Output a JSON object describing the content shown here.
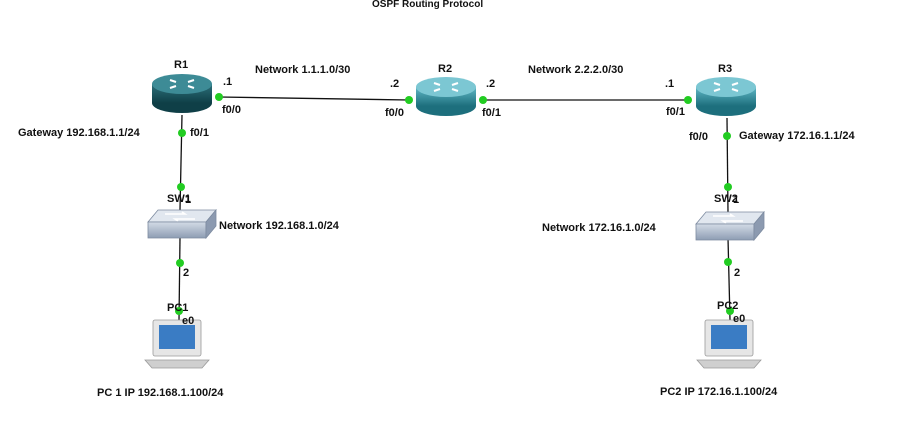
{
  "title": "OSPF Routing Protocol",
  "colors": {
    "link": "#111111",
    "port_dot": "#22cc22",
    "router_body": "#2f8f9f",
    "router_body_dark": "#145a66",
    "switch_body": "#a9b6c8",
    "pc_body": "#d9d9d9",
    "pc_screen": "#3a7cc4"
  },
  "devices": {
    "r1": {
      "name": "R1",
      "icon": "router-icon"
    },
    "r2": {
      "name": "R2",
      "icon": "router-icon"
    },
    "r3": {
      "name": "R3",
      "icon": "router-icon"
    },
    "sw1": {
      "name": "SW1",
      "icon": "switch-icon"
    },
    "sw2": {
      "name": "SW2",
      "icon": "switch-icon"
    },
    "pc1": {
      "name": "PC1",
      "icon": "pc-icon"
    },
    "pc2": {
      "name": "PC2",
      "icon": "pc-icon"
    }
  },
  "labels": {
    "net_r1_r2": "Network  1.1.1.0/30",
    "net_r2_r3": "Network 2.2.2.0/30",
    "r1_f00_addr": ".1",
    "r1_f00": "f0/0",
    "r1_f01": "f0/1",
    "r2_f00_addr": ".2",
    "r2_f00": "f0/0",
    "r2_f01_addr": ".2",
    "r2_f01": "f0/1",
    "r3_f01_addr": ".1",
    "r3_f01": "f0/1",
    "r3_f00": "f0/0",
    "gw1": "Gateway  192.168.1.1/24",
    "gw2": "Gateway  172.16.1.1/24",
    "sw1_port1": "1",
    "sw1_port2": "2",
    "sw2_port1": "1",
    "sw2_port2": "2",
    "net_lan1": "Network  192.168.1.0/24",
    "net_lan2": "Network  172.16.1.0/24",
    "pc1_e0": "e0",
    "pc2_e0": "e0",
    "pc1_ip": "PC 1 IP 192.168.1.100/24",
    "pc2_ip": "PC2 IP 172.16.1.100/24"
  }
}
